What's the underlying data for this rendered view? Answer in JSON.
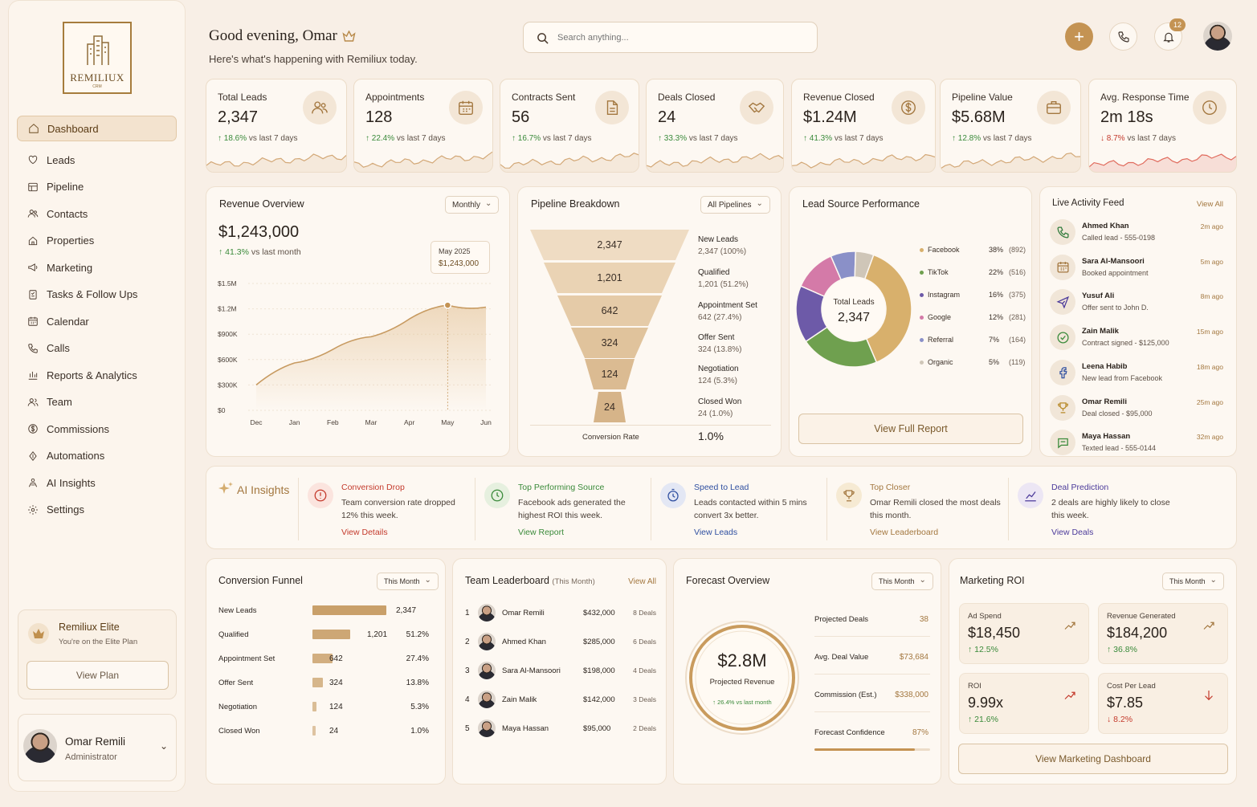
{
  "app": {
    "brand": "REMILIUX",
    "brand_sub": "CRM"
  },
  "header": {
    "greeting": "Good evening, Omar",
    "subtitle": "Here's what's happening with Remiliux today.",
    "search_placeholder": "Search anything...",
    "notifications": "12"
  },
  "sidebar": {
    "items": [
      {
        "label": "Dashboard",
        "icon": "home-icon"
      },
      {
        "label": "Leads",
        "icon": "heart-icon"
      },
      {
        "label": "Pipeline",
        "icon": "pipeline-icon"
      },
      {
        "label": "Contacts",
        "icon": "users-icon"
      },
      {
        "label": "Properties",
        "icon": "house-icon"
      },
      {
        "label": "Marketing",
        "icon": "megaphone-icon"
      },
      {
        "label": "Tasks & Follow Ups",
        "icon": "checklist-icon"
      },
      {
        "label": "Calendar",
        "icon": "calendar-icon"
      },
      {
        "label": "Calls",
        "icon": "phone-icon"
      },
      {
        "label": "Reports & Analytics",
        "icon": "bar-chart-icon"
      },
      {
        "label": "Team",
        "icon": "team-icon"
      },
      {
        "label": "Commissions",
        "icon": "dollar-icon"
      },
      {
        "label": "Automations",
        "icon": "bolt-icon"
      },
      {
        "label": "AI Insights",
        "icon": "ai-icon"
      },
      {
        "label": "Settings",
        "icon": "gear-icon"
      }
    ],
    "elite": {
      "title": "Remiliux Elite",
      "sub": "You're on the Elite Plan",
      "button": "View Plan"
    },
    "user": {
      "name": "Omar Remili",
      "role": "Administrator"
    }
  },
  "kpis": [
    {
      "title": "Total Leads",
      "value": "2,347",
      "change": "18.6%",
      "suffix": "vs last 7 days",
      "dir": "up",
      "icon": "users-icon"
    },
    {
      "title": "Appointments",
      "value": "128",
      "change": "22.4%",
      "suffix": "vs last 7 days",
      "dir": "up",
      "icon": "calendar-icon"
    },
    {
      "title": "Contracts Sent",
      "value": "56",
      "change": "16.7%",
      "suffix": "vs last 7 days",
      "dir": "up",
      "icon": "document-icon"
    },
    {
      "title": "Deals Closed",
      "value": "24",
      "change": "33.3%",
      "suffix": "vs last 7 days",
      "dir": "up",
      "icon": "handshake-icon"
    },
    {
      "title": "Revenue Closed",
      "value": "$1.24M",
      "change": "41.3%",
      "suffix": "vs last 7 days",
      "dir": "up",
      "icon": "dollar-icon"
    },
    {
      "title": "Pipeline Value",
      "value": "$5.68M",
      "change": "12.8%",
      "suffix": "vs last 7 days",
      "dir": "up",
      "icon": "briefcase-icon"
    },
    {
      "title": "Avg. Response Time",
      "value": "2m 18s",
      "change": "8.7%",
      "suffix": "vs last 7 days",
      "dir": "down",
      "icon": "clock-icon"
    }
  ],
  "revenue": {
    "title": "Revenue Overview",
    "filter": "Monthly",
    "total": "$1,243,000",
    "change": "41.3%",
    "change_suffix": "vs last month",
    "tooltip_label": "May 2025",
    "tooltip_value": "$1,243,000"
  },
  "chart_data": {
    "type": "area",
    "title": "Revenue Overview",
    "x": [
      "Dec",
      "Jan",
      "Feb",
      "Mar",
      "Apr",
      "May",
      "Jun"
    ],
    "series": [
      {
        "values": [
          300000,
          560000,
          720000,
          870000,
          1080000,
          1243000,
          1220000
        ]
      }
    ],
    "y_ticks": [
      "$1.5M",
      "$1.2M",
      "$900K",
      "$600K",
      "$300K",
      "$0"
    ],
    "ylim": [
      0,
      1500000
    ],
    "xlabel": "",
    "ylabel": ""
  },
  "pipeline": {
    "title": "Pipeline Breakdown",
    "filter": "All Pipelines",
    "stages": [
      {
        "value": "2,347",
        "name": "New Leads",
        "sub": "2,347 (100%)"
      },
      {
        "value": "1,201",
        "name": "Qualified",
        "sub": "1,201 (51.2%)"
      },
      {
        "value": "642",
        "name": "Appointment Set",
        "sub": "642 (27.4%)"
      },
      {
        "value": "324",
        "name": "Offer Sent",
        "sub": "324 (13.8%)"
      },
      {
        "value": "124",
        "name": "Negotiation",
        "sub": "124 (5.3%)"
      },
      {
        "value": "24",
        "name": "Closed Won",
        "sub": "24 (1.0%)"
      }
    ],
    "conv_label": "Conversion Rate",
    "conv_value": "1.0%"
  },
  "lead_source": {
    "title": "Lead Source Performance",
    "center_label": "Total Leads",
    "center_value": "2,347",
    "button": "View Full Report",
    "sources": [
      {
        "name": "Facebook",
        "pct": "38%",
        "count": "(892)",
        "value": 892,
        "color": "#d8b06c"
      },
      {
        "name": "TikTok",
        "pct": "22%",
        "count": "(516)",
        "value": 516,
        "color": "#6fa04f"
      },
      {
        "name": "Instagram",
        "pct": "16%",
        "count": "(375)",
        "value": 375,
        "color": "#6d5aa8"
      },
      {
        "name": "Google",
        "pct": "12%",
        "count": "(281)",
        "value": 281,
        "color": "#d47aa8"
      },
      {
        "name": "Referral",
        "pct": "7%",
        "count": "(164)",
        "value": 164,
        "color": "#8a90c8"
      },
      {
        "name": "Organic",
        "pct": "5%",
        "count": "(119)",
        "value": 119,
        "color": "#cfc6b8"
      }
    ]
  },
  "feed": {
    "title": "Live Activity Feed",
    "view_all": "View All",
    "items": [
      {
        "name": "Ahmed Khan",
        "desc": "Called lead - 555-0198",
        "time": "2m ago",
        "icon": "phone-icon"
      },
      {
        "name": "Sara Al-Mansoori",
        "desc": "Booked appointment",
        "time": "5m ago",
        "icon": "calendar-icon"
      },
      {
        "name": "Yusuf Ali",
        "desc": "Offer sent to John D.",
        "time": "8m ago",
        "icon": "send-icon"
      },
      {
        "name": "Zain Malik",
        "desc": "Contract signed - $125,000",
        "time": "15m ago",
        "icon": "check-icon"
      },
      {
        "name": "Leena Habib",
        "desc": "New lead from Facebook",
        "time": "18m ago",
        "icon": "facebook-icon"
      },
      {
        "name": "Omar Remili",
        "desc": "Deal closed - $95,000",
        "time": "25m ago",
        "icon": "trophy-icon"
      },
      {
        "name": "Maya Hassan",
        "desc": "Texted lead - 555-0144",
        "time": "32m ago",
        "icon": "message-icon"
      }
    ]
  },
  "insights": {
    "title": "AI Insights",
    "items": [
      {
        "title": "Conversion Drop",
        "desc": "Team conversion rate dropped 12% this week.",
        "link": "View Details",
        "color": "#c43a2c",
        "icon": "alert-icon"
      },
      {
        "title": "Top Performing Source",
        "desc": "Facebook ads generated the highest ROI this week.",
        "link": "View Report",
        "color": "#3a8a3a",
        "icon": "clock-icon"
      },
      {
        "title": "Speed to Lead",
        "desc": "Leads contacted within 5 mins convert 3x better.",
        "link": "View Leads",
        "color": "#2f4fa0",
        "icon": "timer-icon"
      },
      {
        "title": "Top Closer",
        "desc": "Omar Remili closed the most deals this month.",
        "link": "View Leaderboard",
        "color": "#a3773f",
        "icon": "trophy-icon"
      },
      {
        "title": "Deal Prediction",
        "desc": "2 deals are highly likely to close this week.",
        "link": "View Deals",
        "color": "#4b3a9a",
        "icon": "trend-icon"
      }
    ]
  },
  "conv_funnel": {
    "title": "Conversion Funnel",
    "filter": "This Month",
    "rows": [
      {
        "name": "New Leads",
        "value": "2,347",
        "pct": "",
        "frac": 1.0
      },
      {
        "name": "Qualified",
        "value": "1,201",
        "pct": "51.2%",
        "frac": 0.512
      },
      {
        "name": "Appointment Set",
        "value": "642",
        "pct": "27.4%",
        "frac": 0.274
      },
      {
        "name": "Offer Sent",
        "value": "324",
        "pct": "13.8%",
        "frac": 0.138
      },
      {
        "name": "Negotiation",
        "value": "124",
        "pct": "5.3%",
        "frac": 0.053
      },
      {
        "name": "Closed Won",
        "value": "24",
        "pct": "1.0%",
        "frac": 0.01
      }
    ]
  },
  "leaderboard": {
    "title": "Team Leaderboard",
    "period": "(This Month)",
    "view_all": "View All",
    "rows": [
      {
        "rank": "1",
        "name": "Omar Remili",
        "amount": "$432,000",
        "deals": "8 Deals"
      },
      {
        "rank": "2",
        "name": "Ahmed Khan",
        "amount": "$285,000",
        "deals": "6 Deals"
      },
      {
        "rank": "3",
        "name": "Sara Al-Mansoori",
        "amount": "$198,000",
        "deals": "4 Deals"
      },
      {
        "rank": "4",
        "name": "Zain Malik",
        "amount": "$142,000",
        "deals": "3 Deals"
      },
      {
        "rank": "5",
        "name": "Maya Hassan",
        "amount": "$95,000",
        "deals": "2 Deals"
      }
    ]
  },
  "forecast": {
    "title": "Forecast Overview",
    "filter": "This Month",
    "value": "$2.8M",
    "label": "Projected Revenue",
    "change": "26.4% vs last month",
    "rows": [
      {
        "label": "Projected Deals",
        "value": "38"
      },
      {
        "label": "Avg. Deal Value",
        "value": "$73,684"
      },
      {
        "label": "Commission (Est.)",
        "value": "$338,000"
      },
      {
        "label": "Forecast Confidence",
        "value": "87%"
      }
    ],
    "confidence": 0.87
  },
  "roi": {
    "title": "Marketing ROI",
    "filter": "This Month",
    "button": "View Marketing Dashboard",
    "cards": [
      {
        "label": "Ad Spend",
        "value": "$18,450",
        "change": "12.5%",
        "dir": "up"
      },
      {
        "label": "Revenue Generated",
        "value": "$184,200",
        "change": "36.8%",
        "dir": "up"
      },
      {
        "label": "ROI",
        "value": "9.99x",
        "change": "21.6%",
        "dir": "up"
      },
      {
        "label": "Cost Per Lead",
        "value": "$7.85",
        "change": "8.2%",
        "dir": "down"
      }
    ]
  }
}
